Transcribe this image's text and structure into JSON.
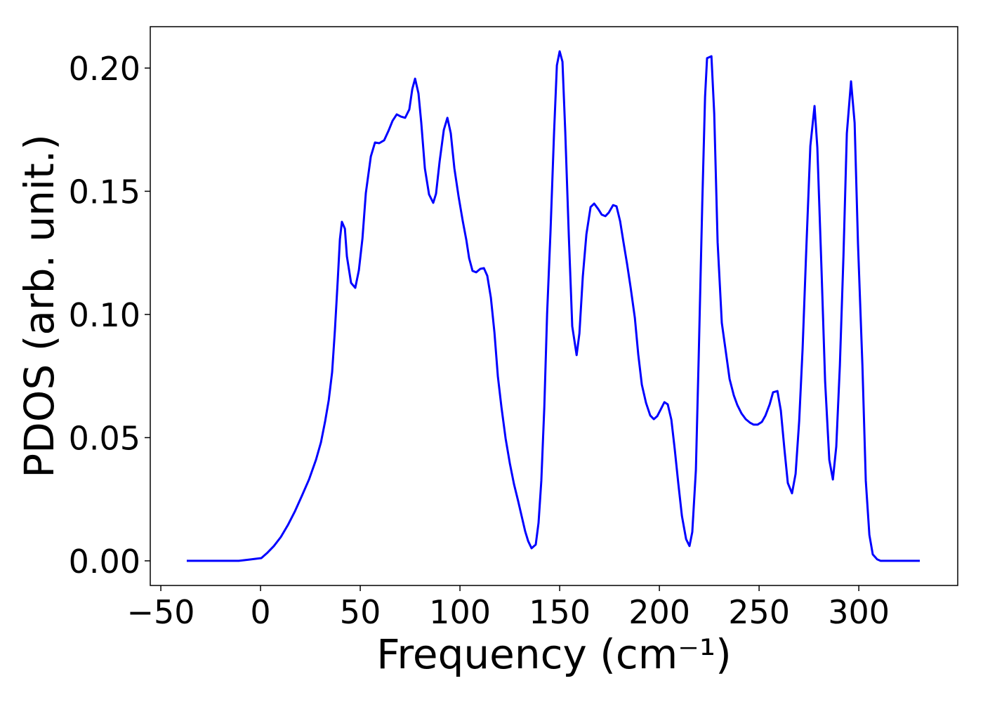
{
  "chart_data": {
    "type": "line",
    "xlabel": "Frequency (cm⁻¹)",
    "ylabel": "PDOS (arb. unit.)",
    "color": "#0000ff",
    "xlim": [
      -55.3,
      349.6
    ],
    "ylim": [
      -0.01,
      0.2168
    ],
    "xticks": [
      {
        "value": -50,
        "label": "−50"
      },
      0,
      50,
      100,
      150,
      200,
      250,
      300
    ],
    "yticks": [
      {
        "value": 0,
        "label": "0.00"
      },
      {
        "value": 0.05,
        "label": "0.05"
      },
      {
        "value": 0.1,
        "label": "0.10"
      },
      {
        "value": 0.15,
        "label": "0.15"
      },
      {
        "value": 0.2,
        "label": "0.20"
      }
    ],
    "x": [
      -37,
      -25,
      -10.9,
      -5.6,
      0.4,
      3.2,
      6.7,
      10.2,
      13.7,
      17.3,
      20.8,
      24.3,
      27.8,
      30.3,
      32.4,
      34.2,
      35.9,
      37.3,
      38.7,
      39.8,
      40.8,
      42.3,
      43.3,
      45.4,
      47.5,
      49.3,
      51.1,
      52.8,
      55.3,
      57.4,
      59.5,
      62.0,
      64.1,
      66.2,
      68.3,
      70.4,
      72.5,
      74.6,
      76.1,
      77.5,
      79.2,
      80.6,
      82.4,
      84.5,
      86.6,
      88.0,
      89.8,
      91.9,
      93.7,
      95.4,
      97.2,
      99.3,
      101.4,
      103.2,
      104.6,
      106.3,
      108.1,
      110.2,
      112.0,
      113.7,
      115.5,
      117.3,
      119.0,
      120.8,
      122.9,
      125.0,
      127.1,
      129.2,
      131.0,
      132.7,
      134.2,
      135.9,
      138.0,
      139.4,
      140.8,
      142.3,
      143.7,
      145.4,
      147.2,
      148.6,
      150.0,
      151.4,
      152.8,
      154.6,
      156.3,
      158.5,
      159.9,
      161.6,
      163.4,
      165.5,
      167.3,
      169.4,
      171.1,
      172.9,
      174.6,
      176.8,
      178.5,
      180.3,
      182.0,
      183.8,
      185.6,
      187.7,
      189.4,
      191.2,
      193.3,
      195.4,
      197.2,
      198.9,
      200.7,
      202.5,
      204.2,
      206.0,
      207.7,
      209.5,
      211.3,
      213.4,
      215.1,
      216.5,
      218.3,
      219.7,
      221.5,
      222.9,
      223.9,
      226.1,
      227.5,
      229.2,
      231.3,
      233.5,
      235.2,
      237.3,
      239.1,
      241.2,
      243.3,
      245.4,
      247.2,
      249.3,
      251.4,
      253.2,
      255.3,
      257.0,
      259.2,
      260.9,
      262.7,
      264.4,
      266.5,
      268.3,
      270.1,
      271.8,
      273.6,
      275.7,
      277.8,
      279.2,
      281.3,
      283.1,
      285.2,
      287.0,
      288.7,
      290.5,
      292.3,
      294.0,
      296.1,
      297.9,
      299.6,
      301.8,
      303.5,
      305.3,
      307.0,
      309.2,
      310.9,
      330.6
    ],
    "values": [
      0,
      0,
      0,
      0.0005,
      0.0011,
      0.0031,
      0.006,
      0.0097,
      0.0145,
      0.0202,
      0.0265,
      0.033,
      0.041,
      0.0481,
      0.0567,
      0.0652,
      0.0766,
      0.0937,
      0.1137,
      0.1305,
      0.1376,
      0.1348,
      0.1236,
      0.1128,
      0.1108,
      0.1179,
      0.1308,
      0.1493,
      0.1641,
      0.1698,
      0.1695,
      0.1707,
      0.1744,
      0.1786,
      0.1812,
      0.1803,
      0.1798,
      0.1832,
      0.1915,
      0.1957,
      0.1897,
      0.1778,
      0.1593,
      0.1487,
      0.1453,
      0.149,
      0.1621,
      0.1749,
      0.1798,
      0.1735,
      0.1593,
      0.1479,
      0.1379,
      0.1302,
      0.1228,
      0.1177,
      0.1171,
      0.1185,
      0.1188,
      0.1157,
      0.1068,
      0.0926,
      0.0749,
      0.0624,
      0.0496,
      0.0396,
      0.0311,
      0.0242,
      0.0179,
      0.012,
      0.008,
      0.0051,
      0.0066,
      0.0154,
      0.0325,
      0.0624,
      0.1003,
      0.1336,
      0.1741,
      0.2011,
      0.2068,
      0.2026,
      0.1741,
      0.1316,
      0.0952,
      0.0835,
      0.0923,
      0.1154,
      0.1325,
      0.1436,
      0.145,
      0.1427,
      0.1405,
      0.1399,
      0.1413,
      0.1444,
      0.1439,
      0.1379,
      0.1293,
      0.1205,
      0.1108,
      0.0986,
      0.0838,
      0.0715,
      0.0641,
      0.059,
      0.0575,
      0.0587,
      0.0615,
      0.0644,
      0.0635,
      0.0573,
      0.0453,
      0.0313,
      0.0182,
      0.0088,
      0.006,
      0.0117,
      0.0368,
      0.0823,
      0.145,
      0.1883,
      0.204,
      0.2048,
      0.1815,
      0.1293,
      0.0966,
      0.0838,
      0.0738,
      0.0672,
      0.0632,
      0.0598,
      0.0575,
      0.0561,
      0.0553,
      0.0553,
      0.0564,
      0.059,
      0.0635,
      0.0684,
      0.0689,
      0.061,
      0.0453,
      0.0316,
      0.0274,
      0.0353,
      0.0567,
      0.0858,
      0.1251,
      0.1684,
      0.1846,
      0.1678,
      0.1182,
      0.0729,
      0.041,
      0.033,
      0.0464,
      0.0792,
      0.1236,
      0.1735,
      0.1946,
      0.1778,
      0.1285,
      0.0795,
      0.0325,
      0.0105,
      0.0026,
      0.0006,
      0,
      0
    ]
  }
}
